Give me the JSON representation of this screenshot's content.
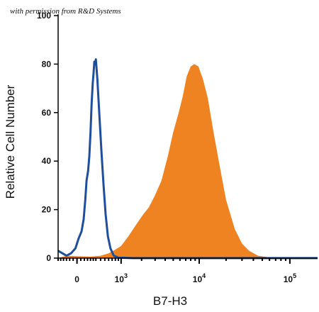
{
  "credit": "with permission from R&D Systems",
  "chart_data": {
    "type": "area",
    "title": "",
    "xlabel": "B7-H3",
    "ylabel": "Relative Cell Number",
    "x_scale": "biexponential",
    "xlim": [
      -300,
      200000
    ],
    "ylim": [
      0,
      100
    ],
    "y_ticks": [
      0,
      20,
      40,
      60,
      80,
      100
    ],
    "x_tick_labels": [
      {
        "value": 0,
        "label": "0"
      },
      {
        "value": 1000,
        "label": "10",
        "exp": "3"
      },
      {
        "value": 10000,
        "label": "10",
        "exp": "4"
      },
      {
        "value": 100000,
        "label": "10",
        "exp": "5"
      }
    ],
    "grid": false,
    "series": [
      {
        "style": "outline",
        "color": "#1f4e9c",
        "points": [
          [
            -300,
            3
          ],
          [
            -220,
            2
          ],
          [
            -150,
            1
          ],
          [
            -80,
            2
          ],
          [
            -20,
            4
          ],
          [
            20,
            8
          ],
          [
            60,
            11
          ],
          [
            90,
            16
          ],
          [
            115,
            24
          ],
          [
            135,
            32
          ],
          [
            160,
            36
          ],
          [
            180,
            42
          ],
          [
            200,
            52
          ],
          [
            220,
            64
          ],
          [
            240,
            72
          ],
          [
            255,
            76
          ],
          [
            270,
            81
          ],
          [
            285,
            80
          ],
          [
            300,
            82
          ],
          [
            330,
            74
          ],
          [
            370,
            60
          ],
          [
            420,
            44
          ],
          [
            470,
            30
          ],
          [
            520,
            18
          ],
          [
            580,
            9
          ],
          [
            650,
            4
          ],
          [
            750,
            1
          ],
          [
            900,
            0.2
          ],
          [
            1500,
            0
          ],
          [
            200000,
            0
          ]
        ]
      },
      {
        "style": "filled",
        "color": "#f08321",
        "points": [
          [
            -300,
            0
          ],
          [
            -150,
            1
          ],
          [
            0,
            0.8
          ],
          [
            200,
            0.6
          ],
          [
            400,
            1
          ],
          [
            600,
            2
          ],
          [
            800,
            3.5
          ],
          [
            1000,
            5
          ],
          [
            1300,
            9
          ],
          [
            1700,
            14
          ],
          [
            2100,
            18
          ],
          [
            2500,
            21
          ],
          [
            3000,
            26
          ],
          [
            3600,
            32
          ],
          [
            4300,
            42
          ],
          [
            5000,
            52
          ],
          [
            5800,
            60
          ],
          [
            6500,
            67
          ],
          [
            7200,
            75
          ],
          [
            8000,
            79
          ],
          [
            8800,
            80
          ],
          [
            9800,
            79
          ],
          [
            11000,
            74
          ],
          [
            12500,
            66
          ],
          [
            14500,
            52
          ],
          [
            17000,
            38
          ],
          [
            20000,
            24
          ],
          [
            25000,
            12
          ],
          [
            30000,
            6
          ],
          [
            36000,
            3
          ],
          [
            45000,
            1
          ],
          [
            60000,
            0.3
          ],
          [
            80000,
            0
          ],
          [
            200000,
            0
          ]
        ]
      }
    ]
  }
}
